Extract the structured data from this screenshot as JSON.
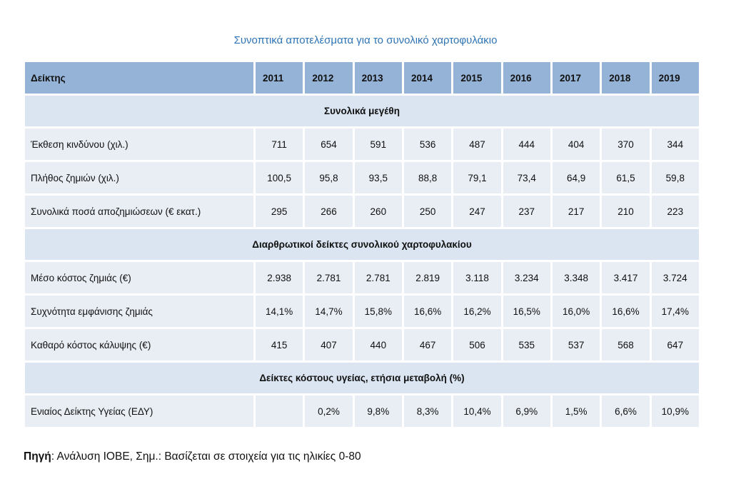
{
  "title": "Συνοπτικά αποτελέσματα για το συνολικό χαρτοφυλάκιο",
  "table": {
    "header_label": "Δείκτης",
    "years": [
      "2011",
      "2012",
      "2013",
      "2014",
      "2015",
      "2016",
      "2017",
      "2018",
      "2019"
    ],
    "sections": [
      {
        "title": "Συνολικά μεγέθη",
        "rows": [
          {
            "label": "Έκθεση κινδύνου (χιλ.)",
            "values": [
              "711",
              "654",
              "591",
              "536",
              "487",
              "444",
              "404",
              "370",
              "344"
            ]
          },
          {
            "label": "Πλήθος ζημιών (χιλ.)",
            "values": [
              "100,5",
              "95,8",
              "93,5",
              "88,8",
              "79,1",
              "73,4",
              "64,9",
              "61,5",
              "59,8"
            ]
          },
          {
            "label": "Συνολικά ποσά αποζημιώσεων (€ εκατ.)",
            "values": [
              "295",
              "266",
              "260",
              "250",
              "247",
              "237",
              "217",
              "210",
              "223"
            ]
          }
        ]
      },
      {
        "title": "Διαρθρωτικοί δείκτες συνολικού χαρτοφυλακίου",
        "rows": [
          {
            "label": "Μέσο κόστος ζημιάς (€)",
            "values": [
              "2.938",
              "2.781",
              "2.781",
              "2.819",
              "3.118",
              "3.234",
              "3.348",
              "3.417",
              "3.724"
            ]
          },
          {
            "label": "Συχνότητα εμφάνισης ζημιάς",
            "values": [
              "14,1%",
              "14,7%",
              "15,8%",
              "16,6%",
              "16,2%",
              "16,5%",
              "16,0%",
              "16,6%",
              "17,4%"
            ]
          },
          {
            "label": "Καθαρό κόστος κάλυψης (€)",
            "values": [
              "415",
              "407",
              "440",
              "467",
              "506",
              "535",
              "537",
              "568",
              "647"
            ]
          }
        ]
      },
      {
        "title": "Δείκτες κόστους υγείας, ετήσια μεταβολή (%)",
        "rows": [
          {
            "label": "Ενιαίος Δείκτης Υγείας (ΕΔΥ)",
            "values": [
              "",
              "0,2%",
              "9,8%",
              "8,3%",
              "10,4%",
              "6,9%",
              "1,5%",
              "6,6%",
              "10,9%"
            ]
          }
        ]
      }
    ]
  },
  "source": {
    "label": "Πηγή",
    "text": ": Ανάλυση ΙΟΒΕ, Σημ.: Βασίζεται σε στοιχεία για τις ηλικίες 0-80"
  }
}
